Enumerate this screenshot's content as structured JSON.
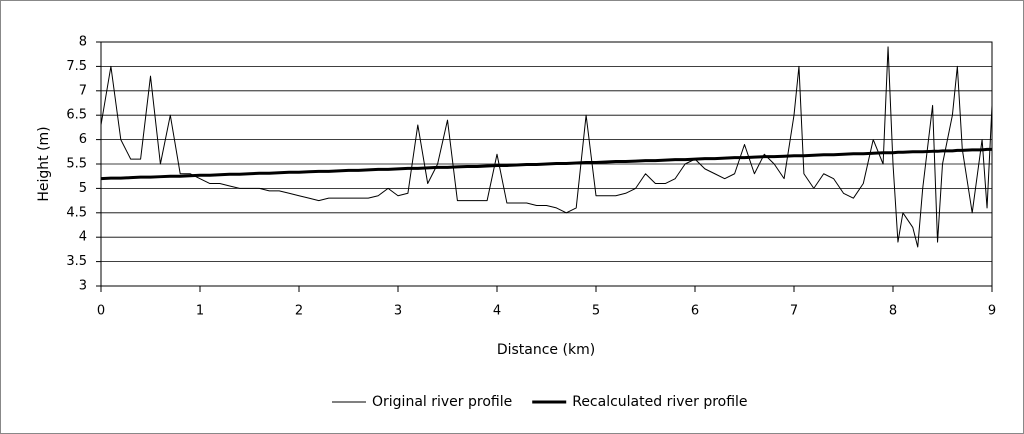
{
  "chart_data": {
    "type": "line",
    "x_label": "Distance (km)",
    "y_label": "Height (m)",
    "x": [
      0,
      0.1,
      0.2,
      0.3,
      0.4,
      0.5,
      0.6,
      0.7,
      0.8,
      0.9,
      1.0,
      1.1,
      1.2,
      1.3,
      1.4,
      1.5,
      1.6,
      1.7,
      1.8,
      1.9,
      2.0,
      2.1,
      2.2,
      2.3,
      2.4,
      2.5,
      2.6,
      2.7,
      2.8,
      2.9,
      3.0,
      3.1,
      3.2,
      3.3,
      3.4,
      3.5,
      3.6,
      3.7,
      3.8,
      3.9,
      4.0,
      4.1,
      4.2,
      4.3,
      4.4,
      4.5,
      4.6,
      4.7,
      4.8,
      4.9,
      5.0,
      5.1,
      5.2,
      5.3,
      5.4,
      5.5,
      5.6,
      5.7,
      5.8,
      5.9,
      6.0,
      6.1,
      6.2,
      6.3,
      6.4,
      6.5,
      6.6,
      6.7,
      6.8,
      6.9,
      7.0,
      7.05,
      7.1,
      7.2,
      7.3,
      7.4,
      7.5,
      7.6,
      7.7,
      7.8,
      7.9,
      7.95,
      8.0,
      8.05,
      8.1,
      8.2,
      8.25,
      8.3,
      8.4,
      8.45,
      8.5,
      8.6,
      8.65,
      8.7,
      8.8,
      8.9,
      8.95,
      9.0
    ],
    "series": [
      {
        "name": "Original river profile",
        "color": "#000000",
        "width": 1,
        "values": [
          6.3,
          7.5,
          6.0,
          5.6,
          5.6,
          7.3,
          5.5,
          6.5,
          5.3,
          5.3,
          5.2,
          5.1,
          5.1,
          5.05,
          5.0,
          5.0,
          5.0,
          4.95,
          4.95,
          4.9,
          4.85,
          4.8,
          4.75,
          4.8,
          4.8,
          4.8,
          4.8,
          4.8,
          4.85,
          5.0,
          4.85,
          4.9,
          6.3,
          5.1,
          5.5,
          6.4,
          4.75,
          4.75,
          4.75,
          4.75,
          5.7,
          4.7,
          4.7,
          4.7,
          4.65,
          4.65,
          4.6,
          4.5,
          4.6,
          6.5,
          4.85,
          4.85,
          4.85,
          4.9,
          5.0,
          5.3,
          5.1,
          5.1,
          5.2,
          5.5,
          5.6,
          5.4,
          5.3,
          5.2,
          5.3,
          5.9,
          5.3,
          5.7,
          5.5,
          5.2,
          6.5,
          7.5,
          5.3,
          5.0,
          5.3,
          5.2,
          4.9,
          4.8,
          5.1,
          6.0,
          5.5,
          7.9,
          5.5,
          3.9,
          4.5,
          4.2,
          3.8,
          5.0,
          6.7,
          3.9,
          5.5,
          6.5,
          7.5,
          5.8,
          4.5,
          6.0,
          4.6,
          6.7
        ]
      },
      {
        "name": "Recalculated river profile",
        "color": "#000000",
        "width": 3,
        "values": [
          5.2,
          5.21,
          5.21,
          5.22,
          5.23,
          5.23,
          5.24,
          5.25,
          5.25,
          5.26,
          5.27,
          5.27,
          5.28,
          5.29,
          5.29,
          5.3,
          5.31,
          5.31,
          5.32,
          5.33,
          5.33,
          5.34,
          5.35,
          5.35,
          5.36,
          5.37,
          5.37,
          5.38,
          5.39,
          5.39,
          5.4,
          5.41,
          5.41,
          5.42,
          5.43,
          5.43,
          5.44,
          5.45,
          5.45,
          5.46,
          5.47,
          5.47,
          5.48,
          5.49,
          5.49,
          5.5,
          5.51,
          5.51,
          5.52,
          5.53,
          5.53,
          5.54,
          5.55,
          5.55,
          5.56,
          5.57,
          5.57,
          5.58,
          5.59,
          5.59,
          5.6,
          5.61,
          5.61,
          5.62,
          5.63,
          5.63,
          5.64,
          5.65,
          5.65,
          5.66,
          5.67,
          5.67,
          5.67,
          5.68,
          5.69,
          5.69,
          5.7,
          5.71,
          5.71,
          5.72,
          5.73,
          5.73,
          5.73,
          5.74,
          5.74,
          5.75,
          5.75,
          5.75,
          5.76,
          5.76,
          5.77,
          5.77,
          5.78,
          5.78,
          5.79,
          5.79,
          5.8,
          5.8
        ]
      }
    ],
    "xlim": [
      0,
      9
    ],
    "xticks": [
      0,
      1,
      2,
      3,
      4,
      5,
      6,
      7,
      8,
      9
    ],
    "ylim": [
      3,
      8
    ],
    "yticks": [
      3,
      3.5,
      4,
      4.5,
      5,
      5.5,
      6,
      6.5,
      7,
      7.5,
      8
    ],
    "grid": true,
    "legend": "bottom"
  }
}
